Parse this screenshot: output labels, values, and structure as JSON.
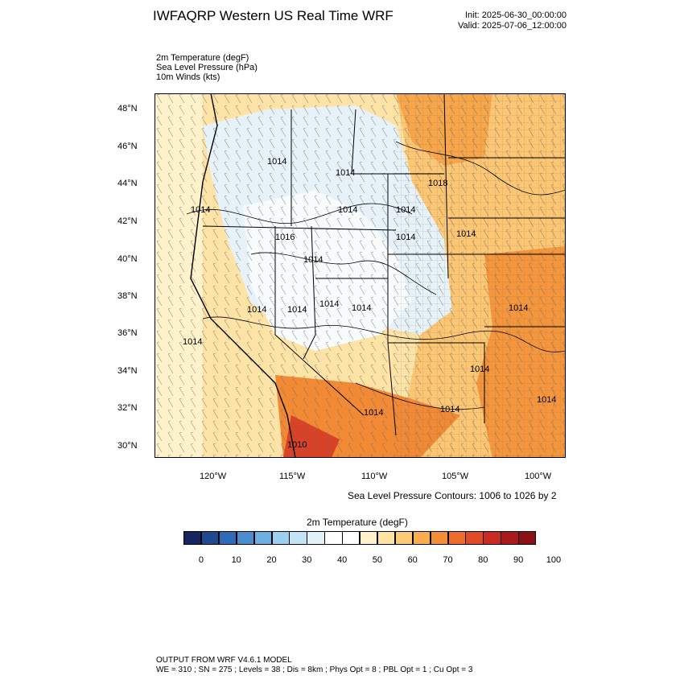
{
  "title": "IWFAQRP Western US Real Time WRF",
  "init": "Init: 2025-06-30_00:00:00",
  "valid": "Valid: 2025-07-06_12:00:00",
  "variables": [
    "2m Temperature   (degF)",
    "Sea Level Pressure   (hPa)",
    "10m Winds   (kts)"
  ],
  "lat_labels": [
    "48°N",
    "46°N",
    "44°N",
    "42°N",
    "40°N",
    "38°N",
    "36°N",
    "34°N",
    "32°N",
    "30°N"
  ],
  "lon_labels": [
    "120°W",
    "115°W",
    "110°W",
    "105°W",
    "100°W"
  ],
  "contour_note": "Sea Level Pressure Contours: 1006 to 1026 by 2",
  "isobar_labels": [
    "1014",
    "1014",
    "1018",
    "1014",
    "1014",
    "1014",
    "1016",
    "1014",
    "1014",
    "1014",
    "1014",
    "1014",
    "1014",
    "1014",
    "1014",
    "1014",
    "1014",
    "1014",
    "1014",
    "1014",
    "1010"
  ],
  "colorbar": {
    "title": "2m Temperature  (degF)",
    "colors": [
      "#15265e",
      "#1f4a8f",
      "#2e6cb8",
      "#4a8ed0",
      "#6fb0e2",
      "#9dd0ef",
      "#c4e4f5",
      "#e2f1f8",
      "#ffffff",
      "#ffffff",
      "#fff2cc",
      "#ffe3a3",
      "#fdca76",
      "#fbad4e",
      "#f58f37",
      "#ee6d2b",
      "#e04a26",
      "#c92b22",
      "#aa1a1d",
      "#8b1116"
    ],
    "tick_labels": [
      "0",
      "10",
      "20",
      "30",
      "40",
      "50",
      "60",
      "70",
      "80",
      "90",
      "100"
    ]
  },
  "footer": {
    "line1": "OUTPUT FROM WRF V4.6.1 MODEL",
    "line2": "WE = 310 ; SN = 275 ; Levels = 38 ; Dis = 8km ; Phys Opt = 8 ; PBL Opt = 1 ; Cu Opt = 3"
  }
}
